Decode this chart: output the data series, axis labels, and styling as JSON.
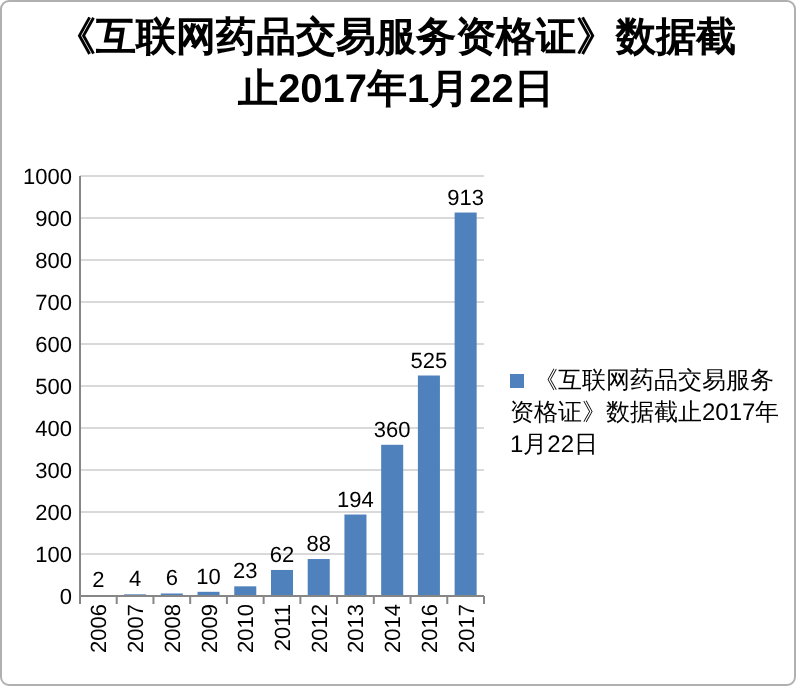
{
  "chart_data": {
    "type": "bar",
    "title": "《互联网药品交易服务资格证》数据截止2017年1月22日",
    "categories": [
      "2006",
      "2007",
      "2008",
      "2009",
      "2010",
      "2011",
      "2012",
      "2013",
      "2014",
      "2016",
      "2017"
    ],
    "series": [
      {
        "name": "《互联网药品交易服务资格证》数据截止2017年1月22日",
        "color": "#4f81bd",
        "values": [
          2,
          4,
          6,
          10,
          23,
          62,
          88,
          194,
          360,
          525,
          913
        ]
      }
    ],
    "ylim": [
      0,
      1000
    ],
    "yticks": [
      0,
      100,
      200,
      300,
      400,
      500,
      600,
      700,
      800,
      900,
      1000
    ],
    "grid": "y",
    "legend": "right",
    "data_labels": true
  }
}
